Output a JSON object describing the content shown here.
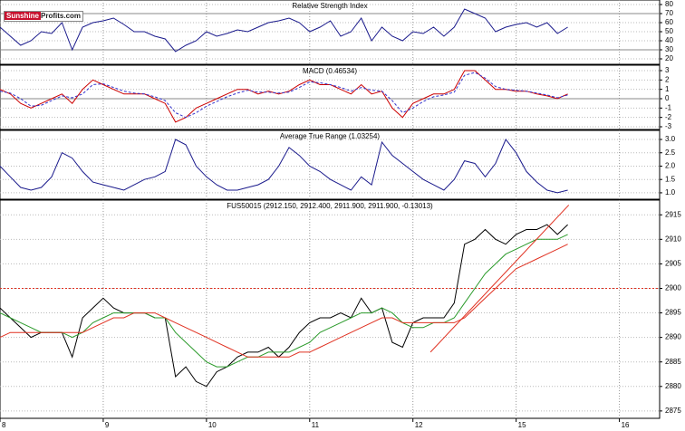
{
  "logo": {
    "part1": "Sunshine",
    "part2": "Profits.com"
  },
  "chart_data": [
    {
      "type": "line",
      "title": "Relative Strength Index",
      "x": [
        0,
        1,
        2,
        3,
        4,
        5,
        6,
        7,
        8,
        9,
        10,
        11,
        12,
        13,
        14,
        15,
        16,
        17,
        18,
        19,
        20,
        21,
        22,
        23,
        24,
        25,
        26,
        27,
        28,
        29,
        30,
        31,
        32,
        33,
        34,
        35,
        36,
        37,
        38,
        39,
        40,
        41,
        42,
        43,
        44,
        45,
        46,
        47,
        48,
        49,
        50,
        51,
        52,
        53,
        54,
        55
      ],
      "series": [
        {
          "color": "#1a1a8c",
          "values": [
            55,
            45,
            35,
            40,
            50,
            48,
            60,
            30,
            55,
            60,
            62,
            65,
            58,
            50,
            50,
            45,
            42,
            28,
            35,
            40,
            50,
            45,
            48,
            52,
            50,
            55,
            60,
            62,
            65,
            60,
            50,
            55,
            62,
            45,
            50,
            65,
            40,
            55,
            45,
            40,
            50,
            48,
            55,
            45,
            55,
            75,
            70,
            65,
            50,
            55,
            58,
            60,
            55,
            60,
            48,
            55
          ]
        }
      ],
      "reference_lines": [
        {
          "value": 70,
          "color": "#888888"
        },
        {
          "value": 30,
          "color": "#888888"
        }
      ],
      "ylim": [
        14,
        85
      ],
      "yticks": [
        80,
        70,
        60,
        50,
        40,
        30,
        20
      ],
      "grid": true
    },
    {
      "type": "line",
      "title": "MACD (0.46534)",
      "x": [
        0,
        1,
        2,
        3,
        4,
        5,
        6,
        7,
        8,
        9,
        10,
        11,
        12,
        13,
        14,
        15,
        16,
        17,
        18,
        19,
        20,
        21,
        22,
        23,
        24,
        25,
        26,
        27,
        28,
        29,
        30,
        31,
        32,
        33,
        34,
        35,
        36,
        37,
        38,
        39,
        40,
        41,
        42,
        43,
        44,
        45,
        46,
        47,
        48,
        49,
        50,
        51,
        52,
        53,
        54,
        55
      ],
      "series": [
        {
          "color": "#cc0000",
          "values": [
            1,
            0.5,
            -0.5,
            -1,
            -0.5,
            0,
            0.5,
            -0.5,
            1,
            2,
            1.5,
            1,
            0.5,
            0.5,
            0.5,
            0,
            -0.5,
            -2.5,
            -2,
            -1,
            -0.5,
            0,
            0.5,
            1,
            1,
            0.5,
            0.8,
            0.5,
            0.8,
            1.5,
            2,
            1.5,
            1.5,
            1,
            0.5,
            1.5,
            0.5,
            0.8,
            -1,
            -2,
            -0.5,
            0,
            0.5,
            0.5,
            1,
            3,
            3,
            2,
            1,
            1,
            0.8,
            0.8,
            0.5,
            0.3,
            0,
            0.5
          ]
        },
        {
          "color": "#3333cc",
          "dashed": true,
          "values": [
            0.8,
            0.6,
            0,
            -0.8,
            -0.7,
            -0.2,
            0.3,
            0.1,
            0.5,
            1.5,
            1.6,
            1.2,
            0.8,
            0.6,
            0.5,
            0.2,
            -0.2,
            -1.5,
            -2,
            -1.5,
            -0.8,
            -0.3,
            0.2,
            0.6,
            0.9,
            0.7,
            0.7,
            0.6,
            0.7,
            1.2,
            1.8,
            1.7,
            1.5,
            1.2,
            0.8,
            1.2,
            0.9,
            0.8,
            -0.2,
            -1.5,
            -1,
            -0.3,
            0.2,
            0.4,
            0.7,
            2.5,
            2.8,
            2.2,
            1.3,
            1,
            0.9,
            0.8,
            0.6,
            0.4,
            0.1,
            0.4
          ]
        }
      ],
      "reference_lines": [
        {
          "value": 0,
          "color": "#888888"
        }
      ],
      "ylim": [
        -3.29,
        3.58
      ],
      "yticks": [
        3,
        2,
        1,
        0,
        -1,
        -2,
        -3
      ],
      "grid": true
    },
    {
      "type": "line",
      "title": "Average True Range (1.03254)",
      "x": [
        0,
        1,
        2,
        3,
        4,
        5,
        6,
        7,
        8,
        9,
        10,
        11,
        12,
        13,
        14,
        15,
        16,
        17,
        18,
        19,
        20,
        21,
        22,
        23,
        24,
        25,
        26,
        27,
        28,
        29,
        30,
        31,
        32,
        33,
        34,
        35,
        36,
        37,
        38,
        39,
        40,
        41,
        42,
        43,
        44,
        45,
        46,
        47,
        48,
        49,
        50,
        51,
        52,
        53,
        54,
        55
      ],
      "series": [
        {
          "color": "#1a1a8c",
          "values": [
            2.0,
            1.6,
            1.2,
            1.1,
            1.2,
            1.6,
            2.5,
            2.3,
            1.8,
            1.4,
            1.3,
            1.2,
            1.1,
            1.3,
            1.5,
            1.6,
            1.8,
            3.0,
            2.8,
            2.0,
            1.6,
            1.3,
            1.1,
            1.1,
            1.2,
            1.3,
            1.5,
            2.0,
            2.7,
            2.4,
            2.0,
            1.8,
            1.5,
            1.3,
            1.1,
            1.6,
            1.3,
            2.9,
            2.4,
            2.1,
            1.8,
            1.5,
            1.3,
            1.1,
            1.5,
            2.2,
            2.1,
            1.6,
            2.1,
            3.0,
            2.5,
            1.8,
            1.4,
            1.1,
            1.0,
            1.1
          ]
        }
      ],
      "ylim": [
        0.76,
        3.34
      ],
      "yticks": [
        {
          "value": 3,
          "label": "3.0"
        },
        2.5,
        {
          "value": 2,
          "label": "2.0"
        },
        1.5,
        {
          "value": 1,
          "label": "1.0"
        }
      ],
      "grid": true
    },
    {
      "type": "line",
      "title": "FUS50015 (2912.150, 2912.400, 2911.900, 2911.900, -0.13013)",
      "x": [
        0,
        1,
        2,
        3,
        4,
        5,
        6,
        7,
        8,
        9,
        10,
        11,
        12,
        13,
        14,
        15,
        16,
        17,
        18,
        19,
        20,
        21,
        22,
        23,
        24,
        25,
        26,
        27,
        28,
        29,
        30,
        31,
        32,
        33,
        34,
        35,
        36,
        37,
        38,
        39,
        40,
        41,
        42,
        43,
        44,
        45,
        46,
        47,
        48,
        49,
        50,
        51,
        52,
        53,
        54,
        55
      ],
      "series": [
        {
          "color": "#000000",
          "values": [
            2896,
            2894,
            2892,
            2890,
            2891,
            2891,
            2891,
            2886,
            2894,
            2896,
            2898,
            2896,
            2895,
            2895,
            2895,
            2894,
            2894,
            2882,
            2884,
            2881,
            2880,
            2883,
            2884,
            2886,
            2887,
            2887,
            2888,
            2886,
            2888,
            2891,
            2893,
            2894,
            2894,
            2895,
            2894,
            2898,
            2895,
            2896,
            2889,
            2888,
            2893,
            2894,
            2894,
            2894,
            2897,
            2909,
            2910,
            2912,
            2910,
            2909,
            2911,
            2912,
            2912,
            2913,
            2911,
            2913
          ]
        },
        {
          "color": "#2a9a2a",
          "values": [
            2895,
            2894,
            2893,
            2892,
            2891,
            2891,
            2891,
            2890,
            2891,
            2893,
            2894,
            2895,
            2895,
            2895,
            2895,
            2894,
            2894,
            2891,
            2889,
            2887,
            2885,
            2884,
            2884,
            2885,
            2886,
            2886,
            2887,
            2887,
            2887,
            2888,
            2889,
            2891,
            2892,
            2893,
            2894,
            2895,
            2895,
            2896,
            2895,
            2893,
            2892,
            2892,
            2893,
            2893,
            2894,
            2897,
            2900,
            2903,
            2905,
            2907,
            2908,
            2909,
            2910,
            2910,
            2910,
            2911
          ]
        },
        {
          "color": "#e03020",
          "values": [
            2890,
            2891,
            2891,
            2891,
            2891,
            2891,
            2891,
            2891,
            2891,
            2892,
            2893,
            2894,
            2894,
            2895,
            2895,
            2895,
            2894,
            2893,
            2892,
            2891,
            2890,
            2889,
            2888,
            2887,
            2886,
            2886,
            2886,
            2886,
            2886,
            2887,
            2887,
            2888,
            2889,
            2890,
            2891,
            2892,
            2893,
            2894,
            2894,
            2893,
            2893,
            2893,
            2893,
            2893,
            2893,
            2894,
            2896,
            2898,
            2900,
            2902,
            2904,
            2905,
            2906,
            2907,
            2908,
            2909
          ]
        }
      ],
      "trend_line": {
        "x": [
          41.7,
          55.1
        ],
        "values": [
          2887,
          2917
        ],
        "color": "#e03020"
      },
      "reference_lines": [
        {
          "value": 2900,
          "color": "#e03020",
          "dashed": true
        }
      ],
      "ylim": [
        2873.5,
        2918
      ],
      "yticks": [
        2915,
        2910,
        2905,
        2900,
        2895,
        2890,
        2885,
        2880,
        2875
      ],
      "grid": true,
      "xlim": [
        0,
        63.9
      ],
      "xticks": [
        {
          "value": 0,
          "label": "8"
        },
        {
          "value": 10,
          "label": "9"
        },
        {
          "value": 20,
          "label": "10"
        },
        {
          "value": 30,
          "label": "11"
        },
        {
          "value": 40,
          "label": "12"
        },
        {
          "value": 50,
          "label": "15"
        },
        {
          "value": 60,
          "label": "16"
        }
      ]
    }
  ]
}
